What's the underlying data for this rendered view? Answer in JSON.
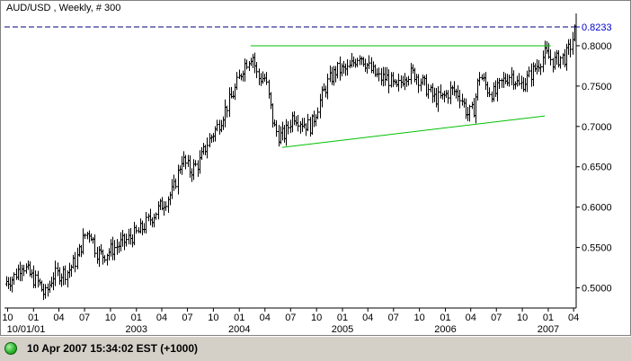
{
  "colors": {
    "background": "#ffffff",
    "bars": "#000000",
    "trendline": "#00c000",
    "price_marker": "#0000cc",
    "status_indicator": "#2fb82f"
  },
  "status": {
    "indicator_icon": "status-green-dot-icon",
    "text": "10 Apr 2007 15:34:02  EST (+1000)"
  },
  "chart_data": {
    "type": "ohlc-bar",
    "title": "AUD/USD , Weekly, # 300",
    "price_marker": {
      "value": 0.8233,
      "label": "0.8233",
      "style": "dashed"
    },
    "y_axis": {
      "position": "right",
      "range": [
        0.475,
        0.84
      ],
      "ticks": [
        {
          "value": 0.5,
          "label": "0.5000"
        },
        {
          "value": 0.55,
          "label": "0.5500"
        },
        {
          "value": 0.6,
          "label": "0.6000"
        },
        {
          "value": 0.65,
          "label": "0.6500"
        },
        {
          "value": 0.7,
          "label": "0.7000"
        },
        {
          "value": 0.75,
          "label": "0.7500"
        },
        {
          "value": 0.8,
          "label": "0.8000"
        }
      ]
    },
    "x_axis": {
      "range": [
        "2001-09-20",
        "2007-04-10"
      ],
      "ticks": [
        {
          "date": "2001-10-01",
          "label": "10",
          "year": "10/01/01"
        },
        {
          "date": "2002-01-01",
          "label": "01"
        },
        {
          "date": "2002-04-01",
          "label": "04"
        },
        {
          "date": "2002-07-01",
          "label": "07"
        },
        {
          "date": "2002-10-01",
          "label": "10"
        },
        {
          "date": "2003-01-01",
          "label": "01",
          "year": "2003"
        },
        {
          "date": "2003-04-01",
          "label": "04"
        },
        {
          "date": "2003-07-01",
          "label": "07"
        },
        {
          "date": "2003-10-01",
          "label": "10"
        },
        {
          "date": "2004-01-01",
          "label": "01",
          "year": "2004"
        },
        {
          "date": "2004-04-01",
          "label": "04"
        },
        {
          "date": "2004-07-01",
          "label": "07"
        },
        {
          "date": "2004-10-01",
          "label": "10"
        },
        {
          "date": "2005-01-01",
          "label": "01",
          "year": "2005"
        },
        {
          "date": "2005-04-01",
          "label": "04"
        },
        {
          "date": "2005-07-01",
          "label": "07"
        },
        {
          "date": "2005-10-01",
          "label": "10"
        },
        {
          "date": "2006-01-01",
          "label": "01",
          "year": "2006"
        },
        {
          "date": "2006-04-01",
          "label": "04"
        },
        {
          "date": "2006-07-01",
          "label": "07"
        },
        {
          "date": "2006-10-01",
          "label": "10"
        },
        {
          "date": "2007-01-01",
          "label": "01",
          "year": "2007"
        },
        {
          "date": "2007-04-01",
          "label": "04"
        }
      ]
    },
    "trendlines": [
      {
        "name": "resistance",
        "from": {
          "date": "2004-02-10",
          "value": 0.8
        },
        "to": {
          "date": "2007-01-10",
          "value": 0.8
        }
      },
      {
        "name": "rising-support",
        "from": {
          "date": "2004-06-01",
          "value": 0.674
        },
        "to": {
          "date": "2006-12-20",
          "value": 0.713
        }
      }
    ],
    "price_path": [
      [
        "2001-09-25",
        0.508
      ],
      [
        "2001-10-20",
        0.512
      ],
      [
        "2001-11-20",
        0.53
      ],
      [
        "2001-12-20",
        0.515
      ],
      [
        "2002-01-20",
        0.505
      ],
      [
        "2002-02-10",
        0.49
      ],
      [
        "2002-03-10",
        0.515
      ],
      [
        "2002-05-01",
        0.52
      ],
      [
        "2002-06-01",
        0.535
      ],
      [
        "2002-07-01",
        0.565
      ],
      [
        "2002-07-20",
        0.57
      ],
      [
        "2002-08-10",
        0.545
      ],
      [
        "2002-09-01",
        0.54
      ],
      [
        "2002-10-15",
        0.55
      ],
      [
        "2002-12-01",
        0.56
      ],
      [
        "2003-01-10",
        0.57
      ],
      [
        "2003-03-01",
        0.59
      ],
      [
        "2003-05-10",
        0.62
      ],
      [
        "2003-06-10",
        0.66
      ],
      [
        "2003-07-10",
        0.645
      ],
      [
        "2003-08-10",
        0.655
      ],
      [
        "2003-09-10",
        0.68
      ],
      [
        "2003-10-15",
        0.7
      ],
      [
        "2003-11-10",
        0.72
      ],
      [
        "2003-12-15",
        0.745
      ],
      [
        "2004-01-15",
        0.775
      ],
      [
        "2004-02-15",
        0.79
      ],
      [
        "2004-03-05",
        0.76
      ],
      [
        "2004-04-01",
        0.76
      ],
      [
        "2004-05-01",
        0.7
      ],
      [
        "2004-05-20",
        0.688
      ],
      [
        "2004-06-10",
        0.69
      ],
      [
        "2004-07-10",
        0.715
      ],
      [
        "2004-08-10",
        0.705
      ],
      [
        "2004-09-10",
        0.7
      ],
      [
        "2004-10-10",
        0.73
      ],
      [
        "2004-11-10",
        0.755
      ],
      [
        "2004-12-10",
        0.77
      ],
      [
        "2005-01-20",
        0.77
      ],
      [
        "2005-03-01",
        0.79
      ],
      [
        "2005-04-10",
        0.77
      ],
      [
        "2005-05-10",
        0.76
      ],
      [
        "2005-06-10",
        0.76
      ],
      [
        "2005-07-10",
        0.745
      ],
      [
        "2005-08-10",
        0.765
      ],
      [
        "2005-09-15",
        0.765
      ],
      [
        "2005-10-20",
        0.75
      ],
      [
        "2005-11-20",
        0.735
      ],
      [
        "2005-12-20",
        0.735
      ],
      [
        "2006-01-20",
        0.745
      ],
      [
        "2006-02-20",
        0.74
      ],
      [
        "2006-03-20",
        0.715
      ],
      [
        "2006-04-10",
        0.72
      ],
      [
        "2006-05-01",
        0.765
      ],
      [
        "2006-06-01",
        0.745
      ],
      [
        "2006-06-25",
        0.74
      ],
      [
        "2006-07-20",
        0.755
      ],
      [
        "2006-08-20",
        0.765
      ],
      [
        "2006-09-20",
        0.75
      ],
      [
        "2006-10-20",
        0.76
      ],
      [
        "2006-11-20",
        0.775
      ],
      [
        "2006-12-20",
        0.79
      ],
      [
        "2007-01-20",
        0.78
      ],
      [
        "2007-02-10",
        0.785
      ],
      [
        "2007-03-01",
        0.785
      ],
      [
        "2007-03-20",
        0.8
      ],
      [
        "2007-04-07",
        0.823
      ]
    ]
  }
}
